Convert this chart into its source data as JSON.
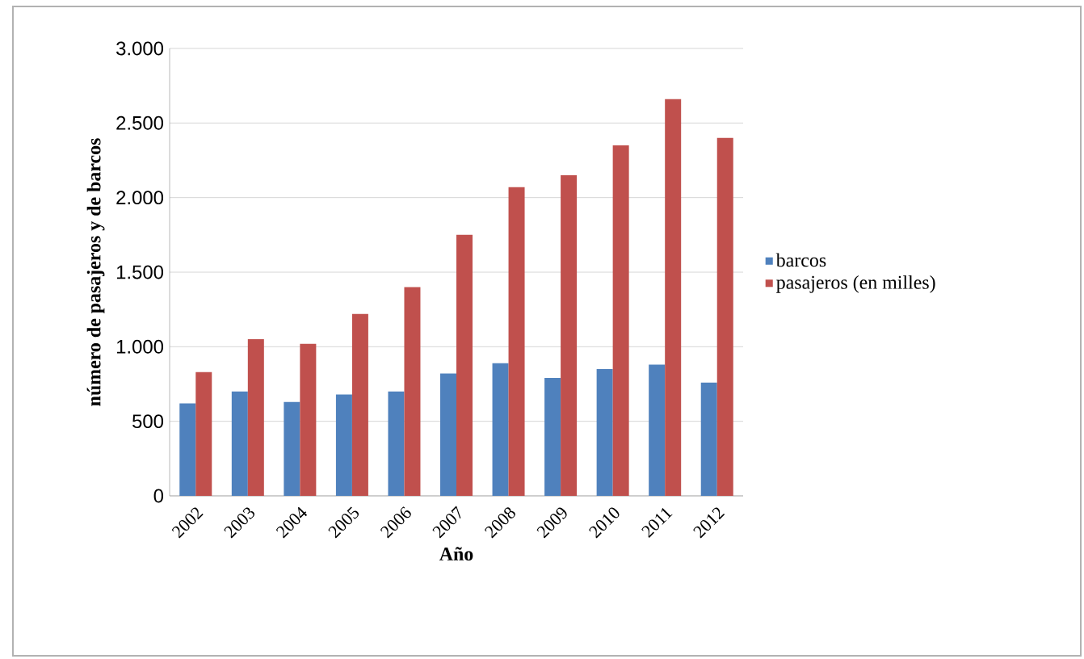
{
  "chart_data": {
    "type": "bar",
    "xlabel": "Año",
    "ylabel": "número de pasajeros y de barcos",
    "categories": [
      "2002",
      "2003",
      "2004",
      "2005",
      "2006",
      "2007",
      "2008",
      "2009",
      "2010",
      "2011",
      "2012"
    ],
    "series": [
      {
        "name": "barcos",
        "color": "#4f81bd",
        "values": [
          620,
          700,
          630,
          680,
          700,
          820,
          890,
          790,
          850,
          880,
          760
        ]
      },
      {
        "name": "pasajeros  (en milles)",
        "color": "#c0504d",
        "values": [
          830,
          1050,
          1020,
          1220,
          1400,
          1750,
          2070,
          2150,
          2350,
          2660,
          2400
        ]
      }
    ],
    "ylim": [
      0,
      3000
    ],
    "yticks": [
      0,
      500,
      {
        "value": 1000,
        "label": "1.000"
      },
      {
        "value": 1500,
        "label": "1.500"
      },
      {
        "value": 2000,
        "label": "2.000"
      },
      {
        "value": 2500,
        "label": "2.500"
      },
      {
        "value": 3000,
        "label": "3.000"
      }
    ],
    "grid": "y",
    "legend": "right"
  }
}
